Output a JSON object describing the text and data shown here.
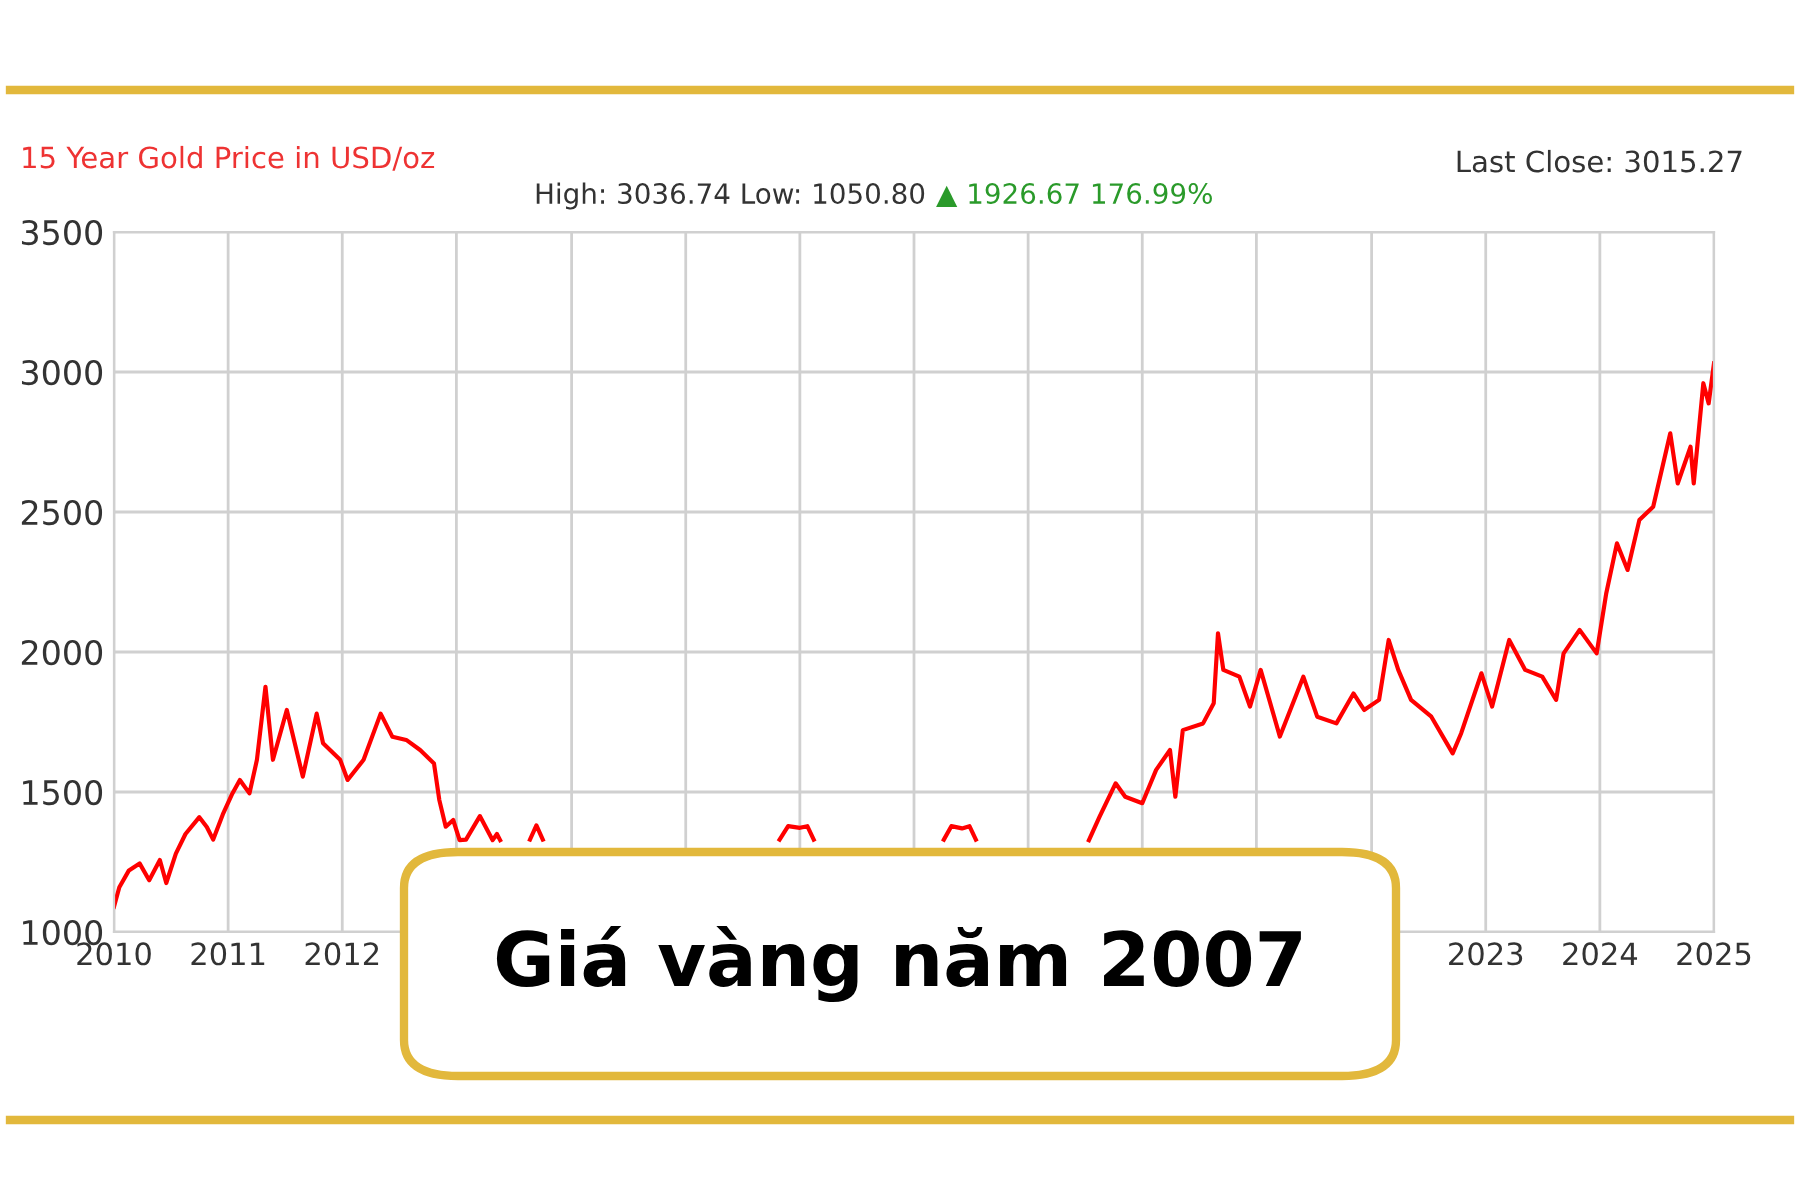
{
  "chart_data": {
    "type": "line",
    "title": "15 Year Gold Price in USD/oz",
    "annotations": [
      "High: 3036.74 Low: 1050.80",
      "▲ 1926.67 176.99%",
      "Last Close: 3015.27",
      "Giá vàng năm 2007"
    ],
    "series": [
      {
        "color": "#ff0000",
        "x": [
          2010.0,
          2010.05,
          2010.14,
          2010.24,
          2010.33,
          2010.43,
          2010.49,
          2010.58,
          2010.67,
          2010.8,
          2010.87,
          2010.93,
          2011.02,
          2011.11,
          2011.18,
          2011.27,
          2011.34,
          2011.42,
          2011.49,
          2011.62,
          2011.77,
          2011.9,
          2011.96,
          2012.12,
          2012.19,
          2012.34,
          2012.5,
          2012.61,
          2012.74,
          2012.87,
          2013.0,
          2013.05,
          2013.11,
          2013.18,
          2013.24,
          2013.3,
          2013.43,
          2013.55,
          2013.59,
          2013.62,
          2013.75,
          2013.9,
          2013.96,
          2014.02,
          2014.12,
          2015.89,
          2016.24,
          2016.32,
          2016.43,
          2016.5,
          2016.56,
          2017.0,
          2017.61,
          2017.78,
          2017.85,
          2017.95,
          2018.02,
          2018.08,
          2018.46,
          2019.0,
          2019.14,
          2019.24,
          2019.39,
          2019.48,
          2019.64,
          2019.77,
          2019.9,
          2019.95,
          2020.02,
          2020.21,
          2020.31,
          2020.35,
          2020.4,
          2020.55,
          2020.65,
          2020.75,
          2020.93,
          2021.15,
          2021.28,
          2021.46,
          2021.62,
          2021.72,
          2021.86,
          2021.95,
          2022.04,
          2022.16,
          2022.35,
          2022.55,
          2022.63,
          2022.82,
          2022.92,
          2023.08,
          2023.23,
          2023.39,
          2023.52,
          2023.59,
          2023.74,
          2023.9,
          2023.99,
          2024.09,
          2024.19,
          2024.3,
          2024.43,
          2024.59,
          2024.66,
          2024.78,
          2024.81,
          2024.9,
          2024.95,
          2025.0
        ],
        "values": [
          1090,
          1160,
          1220,
          1245,
          1185,
          1257,
          1175,
          1280,
          1350,
          1410,
          1375,
          1330,
          1420,
          1495,
          1543,
          1495,
          1615,
          1876,
          1615,
          1793,
          1555,
          1780,
          1674,
          1615,
          1543,
          1615,
          1780,
          1697,
          1686,
          1650,
          1602,
          1471,
          1376,
          1400,
          1328,
          1330,
          1414,
          1328,
          1350,
          1328,
          null,
          1330,
          1381,
          1330,
          null,
          null,
          1330,
          1378,
          1372,
          1378,
          1330,
          null,
          null,
          1330,
          1378,
          1370,
          1378,
          1330,
          null,
          null,
          1328,
          1412,
          1531,
          1483,
          1460,
          1579,
          1650,
          1483,
          1721,
          1745,
          1817,
          2067,
          1936,
          1912,
          1805,
          1936,
          1698,
          1912,
          1769,
          1745,
          1852,
          1793,
          1829,
          2043,
          1936,
          1829,
          1769,
          1638,
          1710,
          1924,
          1805,
          2043,
          1936,
          1912,
          1829,
          1995,
          2079,
          1995,
          2210,
          2388,
          2293,
          2471,
          2519,
          2781,
          2602,
          2733,
          2602,
          2960,
          2888,
          3031
        ]
      }
    ],
    "xlim": [
      2010,
      2025
    ],
    "xticks": [
      2010,
      {
        "value": 2011.07,
        "label": "2011"
      },
      {
        "value": 2012.14,
        "label": "2012"
      },
      {
        "value": 2013.21,
        "label": null
      },
      {
        "value": 2014.29,
        "label": null
      },
      {
        "value": 2015.36,
        "label": null
      },
      {
        "value": 2016.43,
        "label": null
      },
      {
        "value": 2017.5,
        "label": null
      },
      {
        "value": 2018.57,
        "label": null
      },
      {
        "value": 2019.64,
        "label": null
      },
      {
        "value": 2020.71,
        "label": null
      },
      {
        "value": 2021.79,
        "label": null
      },
      {
        "value": 2022.86,
        "label": "2023"
      },
      {
        "value": 2023.93,
        "label": "2024"
      },
      2025
    ],
    "ylim": [
      1000,
      3500
    ],
    "yticks": [
      1000,
      1500,
      2000,
      2500,
      3000,
      3500
    ],
    "grid": true,
    "marker": "none",
    "line_style": "solid"
  }
}
